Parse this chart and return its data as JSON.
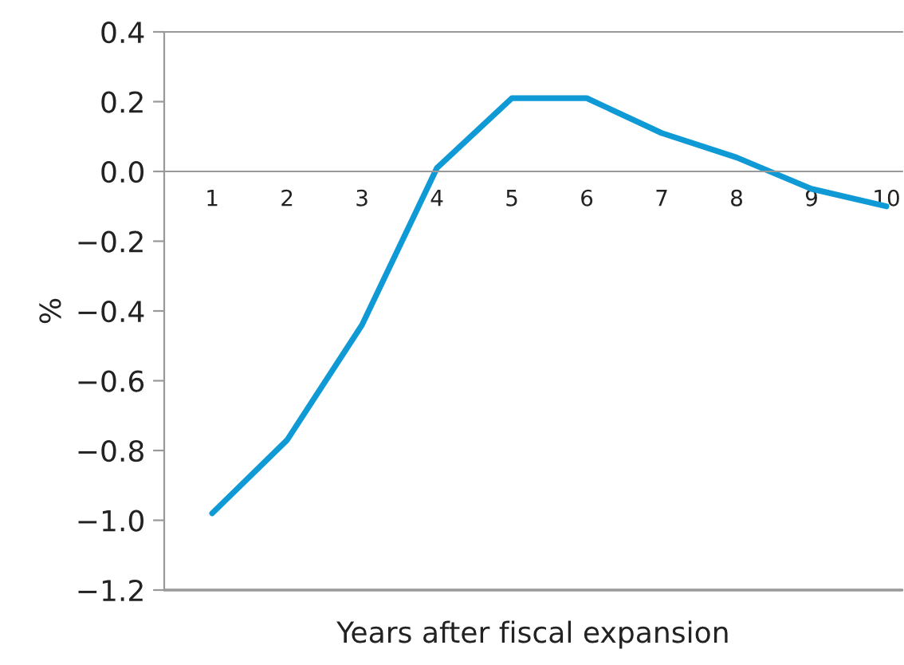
{
  "chart_data": {
    "type": "line",
    "xlabel": "Years after fiscal expansion",
    "ylabel": "%",
    "categories": [
      "1",
      "2",
      "3",
      "4",
      "5",
      "6",
      "7",
      "8",
      "9",
      "10"
    ],
    "series": [
      {
        "color": "#0f9ad6",
        "values": [
          -0.98,
          -0.77,
          -0.44,
          0.01,
          0.21,
          0.21,
          0.11,
          0.04,
          -0.05,
          -0.1
        ]
      }
    ],
    "ylim": [
      -1.2,
      0.4
    ],
    "yticks": [
      {
        "value": -1.2,
        "label": "−1.2"
      },
      {
        "value": -1.0,
        "label": "−1.0"
      },
      {
        "value": -0.8,
        "label": "−0.8"
      },
      {
        "value": -0.6,
        "label": "−0.6"
      },
      {
        "value": -0.4,
        "label": "−0.4"
      },
      {
        "value": -0.2,
        "label": "−0.2"
      },
      {
        "value": 0.0,
        "label": "0.0"
      },
      {
        "value": 0.2,
        "label": "0.2"
      },
      {
        "value": 0.4,
        "label": "0.4"
      }
    ],
    "grid": false,
    "legend": false,
    "marker": "none",
    "line_style": "solid"
  }
}
